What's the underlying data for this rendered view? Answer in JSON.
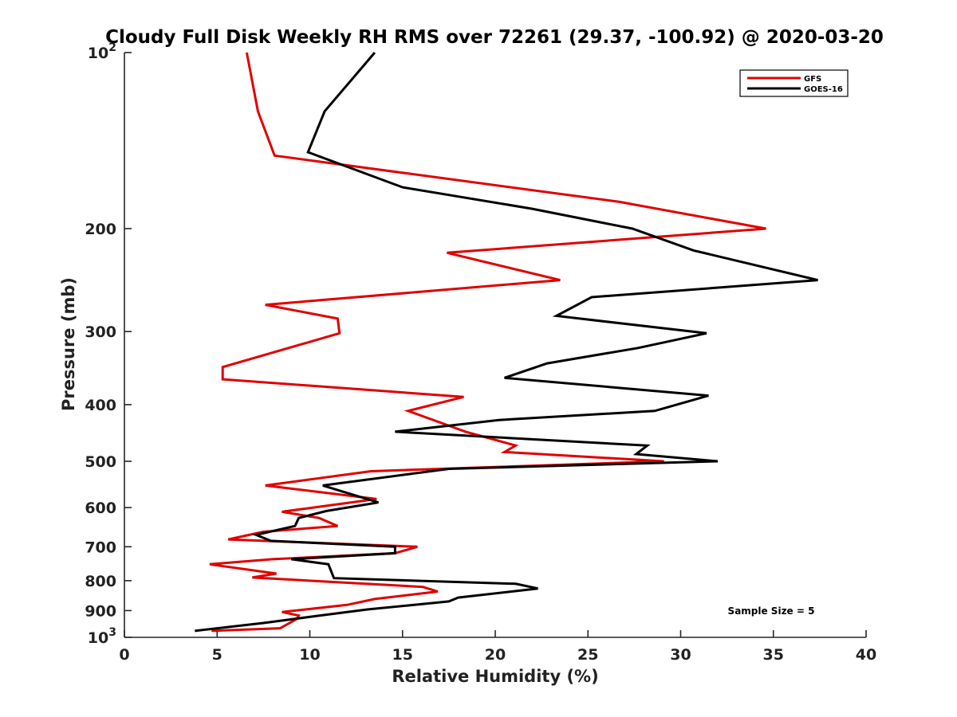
{
  "chart_data": {
    "type": "line",
    "title": "Cloudy Full Disk Weekly RH RMS over 72261 (29.37, -100.92) @ 2020-03-20",
    "xlabel": "Relative Humidity (%)",
    "ylabel": "Pressure (mb)",
    "xlim": [
      0,
      40
    ],
    "ylim": [
      100,
      1000
    ],
    "yscale": "log",
    "y_reversed": true,
    "grid": false,
    "legend_position": "top-right",
    "annotation": "Sample Size = 5",
    "x_ticks": [
      {
        "value": 0,
        "label": "0"
      },
      {
        "value": 5,
        "label": "5"
      },
      {
        "value": 10,
        "label": "10"
      },
      {
        "value": 15,
        "label": "15"
      },
      {
        "value": 20,
        "label": "20"
      },
      {
        "value": 25,
        "label": "25"
      },
      {
        "value": 30,
        "label": "30"
      },
      {
        "value": 35,
        "label": "35"
      },
      {
        "value": 40,
        "label": "40"
      }
    ],
    "y_ticks": [
      {
        "value": 100,
        "base": "10",
        "exp": "2"
      },
      {
        "value": 200,
        "label": "200"
      },
      {
        "value": 300,
        "label": "300"
      },
      {
        "value": 400,
        "label": "400"
      },
      {
        "value": 500,
        "label": "500"
      },
      {
        "value": 600,
        "label": "600"
      },
      {
        "value": 700,
        "label": "700"
      },
      {
        "value": 800,
        "label": "800"
      },
      {
        "value": 900,
        "label": "900"
      },
      {
        "value": 1000,
        "base": "10",
        "exp": "3"
      }
    ],
    "series": [
      {
        "name": "GFS",
        "color": "#e00000",
        "points": [
          [
            6.6,
            100
          ],
          [
            7.2,
            126
          ],
          [
            8.1,
            150
          ],
          [
            26.7,
            180
          ],
          [
            34.6,
            200
          ],
          [
            17.4,
            220
          ],
          [
            23.5,
            245
          ],
          [
            7.6,
            270
          ],
          [
            11.5,
            285
          ],
          [
            11.6,
            302
          ],
          [
            5.3,
            345
          ],
          [
            5.3,
            362
          ],
          [
            18.3,
            388
          ],
          [
            15.3,
            410
          ],
          [
            18.4,
            445
          ],
          [
            21.1,
            470
          ],
          [
            20.5,
            482
          ],
          [
            29.1,
            500
          ],
          [
            13.3,
            520
          ],
          [
            7.6,
            550
          ],
          [
            13.6,
            580
          ],
          [
            8.5,
            610
          ],
          [
            10.5,
            625
          ],
          [
            11.5,
            645
          ],
          [
            7.5,
            660
          ],
          [
            5.6,
            680
          ],
          [
            15.8,
            700
          ],
          [
            14.6,
            718
          ],
          [
            8.0,
            735
          ],
          [
            4.6,
            750
          ],
          [
            8.2,
            778
          ],
          [
            6.9,
            790
          ],
          [
            16.1,
            820
          ],
          [
            16.9,
            835
          ],
          [
            13.5,
            860
          ],
          [
            12.0,
            880
          ],
          [
            8.5,
            905
          ],
          [
            9.4,
            918
          ],
          [
            9.3,
            930
          ],
          [
            8.4,
            965
          ],
          [
            4.7,
            975
          ]
        ]
      },
      {
        "name": "GOES-16",
        "color": "#000000",
        "points": [
          [
            13.5,
            100
          ],
          [
            10.8,
            126
          ],
          [
            9.9,
            148
          ],
          [
            15.0,
            170
          ],
          [
            22.0,
            185
          ],
          [
            27.4,
            200
          ],
          [
            30.7,
            218
          ],
          [
            37.4,
            245
          ],
          [
            25.2,
            262
          ],
          [
            23.3,
            282
          ],
          [
            31.4,
            302
          ],
          [
            27.7,
            320
          ],
          [
            22.8,
            340
          ],
          [
            20.5,
            360
          ],
          [
            31.5,
            386
          ],
          [
            28.6,
            410
          ],
          [
            20.2,
            425
          ],
          [
            14.6,
            445
          ],
          [
            28.2,
            470
          ],
          [
            27.6,
            486
          ],
          [
            32.0,
            500
          ],
          [
            17.5,
            515
          ],
          [
            10.7,
            550
          ],
          [
            12.3,
            570
          ],
          [
            13.7,
            588
          ],
          [
            10.9,
            608
          ],
          [
            9.4,
            625
          ],
          [
            9.2,
            645
          ],
          [
            7.1,
            668
          ],
          [
            7.9,
            684
          ],
          [
            14.6,
            700
          ],
          [
            14.6,
            718
          ],
          [
            9.0,
            735
          ],
          [
            11.0,
            750
          ],
          [
            11.3,
            792
          ],
          [
            21.1,
            810
          ],
          [
            22.3,
            825
          ],
          [
            18.0,
            855
          ],
          [
            17.5,
            868
          ],
          [
            13.1,
            896
          ],
          [
            10.3,
            920
          ],
          [
            7.5,
            945
          ],
          [
            3.8,
            975
          ]
        ]
      }
    ]
  }
}
